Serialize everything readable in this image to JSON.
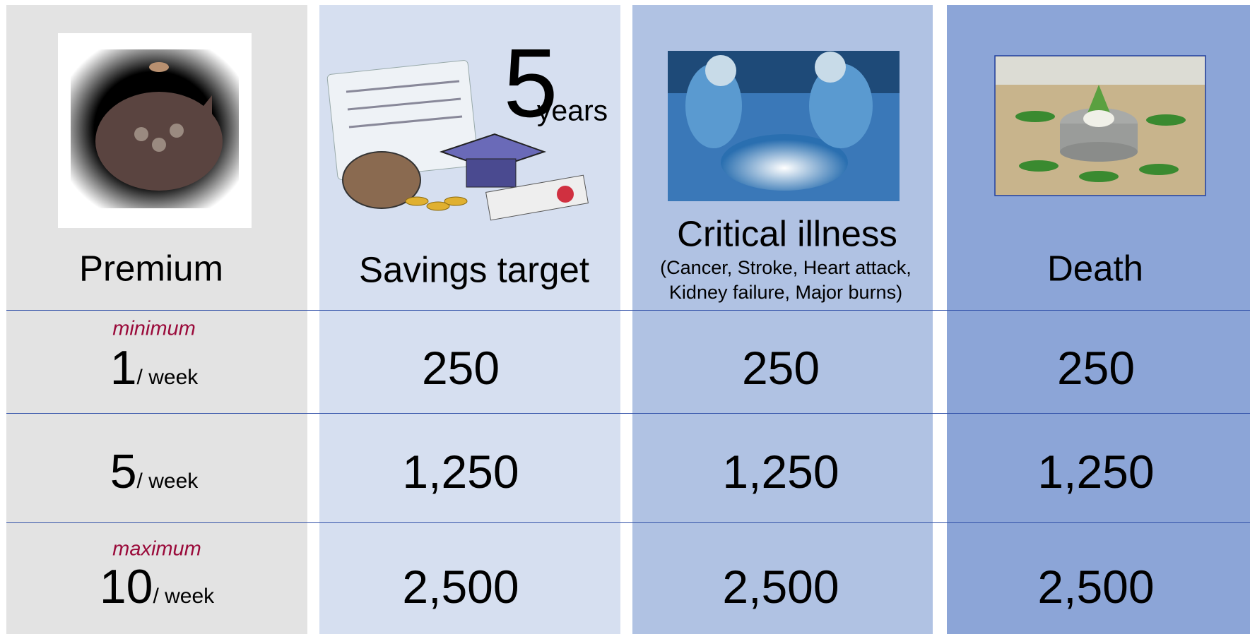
{
  "columns": [
    {
      "title": "Premium"
    },
    {
      "title": "Savings target",
      "badge": {
        "number": "5",
        "unit": "years"
      }
    },
    {
      "title": "Critical illness",
      "subtitle": "(Cancer, Stroke, Heart attack, Kidney failure, Major burns)"
    },
    {
      "title": "Death"
    }
  ],
  "rows": [
    {
      "note": "minimum",
      "premium": "1",
      "unit": "/ week",
      "values": [
        "250",
        "250",
        "250"
      ]
    },
    {
      "premium": "5",
      "unit": "/ week",
      "values": [
        "1,250",
        "1,250",
        "1,250"
      ]
    },
    {
      "note": "maximum",
      "premium": "10",
      "unit": "/ week",
      "values": [
        "2,500",
        "2,500",
        "2,500"
      ]
    }
  ]
}
